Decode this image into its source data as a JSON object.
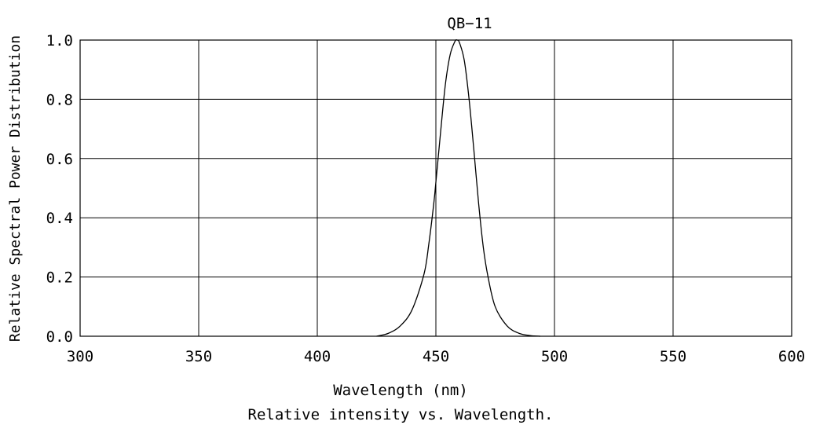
{
  "chart_data": {
    "type": "line",
    "title": "QB−11",
    "caption": "Relative intensity vs. Wavelength.",
    "xlabel": "Wavelength (nm)",
    "ylabel": "Relative Spectral Power Distribution",
    "xlim": [
      300,
      600
    ],
    "ylim": [
      0.0,
      1.0
    ],
    "x_ticks": [
      300,
      350,
      400,
      450,
      500,
      550,
      600
    ],
    "x_tick_labels": [
      "300",
      "350",
      "400",
      "450",
      "500",
      "550",
      "600"
    ],
    "y_ticks": [
      0.0,
      0.2,
      0.4,
      0.6,
      0.8,
      1.0
    ],
    "y_tick_labels": [
      "0.0",
      "0.2",
      "0.4",
      "0.6",
      "0.8",
      "1.0"
    ],
    "grid": true,
    "line_color": "#000000",
    "series": [
      {
        "x": [
          425,
          430,
          435,
          440,
          445,
          447,
          449,
          450,
          452,
          454,
          456,
          458,
          459,
          460,
          462,
          464,
          466,
          468,
          470,
          472,
          475,
          480,
          485,
          490,
          494
        ],
        "y": [
          0.0,
          0.01,
          0.035,
          0.09,
          0.21,
          0.31,
          0.44,
          0.52,
          0.69,
          0.85,
          0.95,
          0.995,
          1.0,
          0.99,
          0.93,
          0.8,
          0.63,
          0.45,
          0.3,
          0.2,
          0.1,
          0.035,
          0.01,
          0.002,
          0.0
        ]
      }
    ]
  }
}
